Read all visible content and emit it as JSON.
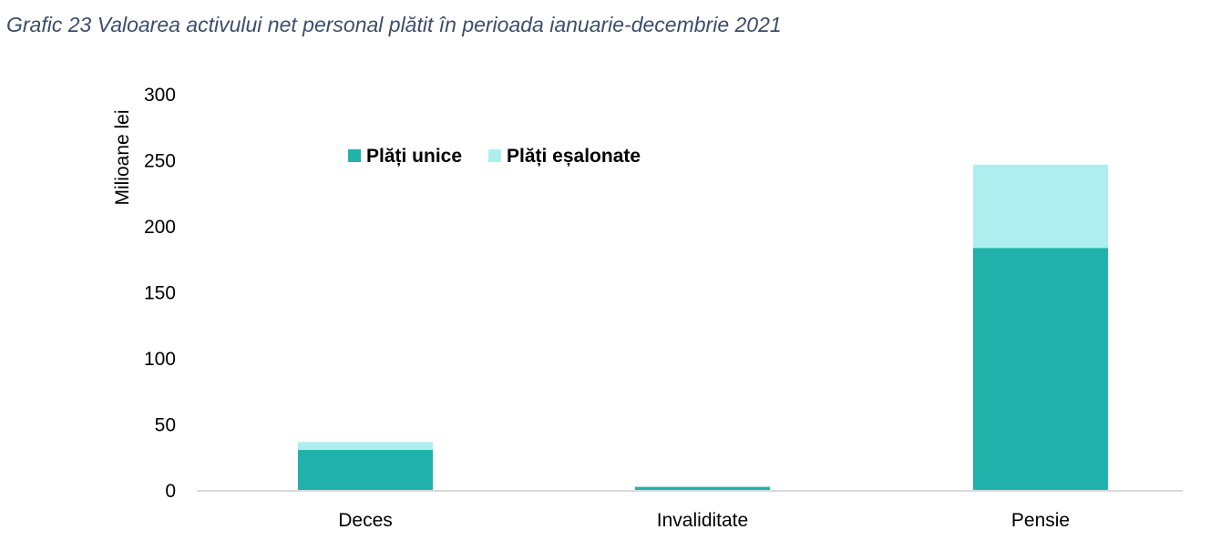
{
  "title": "Grafic 23 Valoarea activului net personal plătit în perioada ianuarie-decembrie 2021",
  "chart_data": {
    "type": "bar",
    "stacked": true,
    "title": "Grafic 23 Valoarea activului net personal plătit în perioada ianuarie-decembrie 2021",
    "xlabel": "",
    "ylabel": "Milioane lei",
    "ylim": [
      0,
      300
    ],
    "yticks": [
      0,
      50,
      100,
      150,
      200,
      250,
      300
    ],
    "categories": [
      "Deces",
      "Invaliditate",
      "Pensie"
    ],
    "series": [
      {
        "name": "Plăți unice",
        "values": [
          31,
          3,
          184
        ],
        "color": "#20b2aa"
      },
      {
        "name": "Plăți eșalonate",
        "values": [
          6,
          0,
          63
        ],
        "color": "#afeeee"
      }
    ],
    "grid": false,
    "legend": "top-center"
  }
}
